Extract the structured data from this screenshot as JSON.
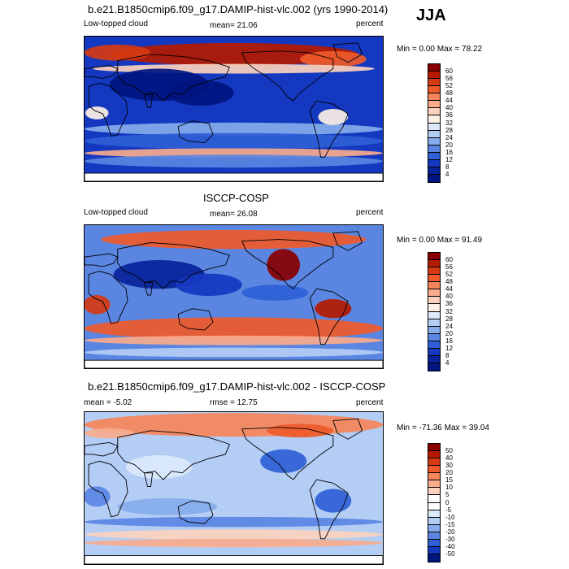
{
  "season": "JJA",
  "panels": [
    {
      "title": "b.e21.B1850cmip6.f09_g17.DAMIP-hist-vlc.002 (yrs 1990-2014)",
      "left_label": "Low-topped cloud",
      "center_label": "mean=  21.06",
      "right_label": "percent",
      "minmax": "Min =   0.00 Max =  78.22",
      "colorbar": {
        "labels": [
          "60",
          "56",
          "52",
          "48",
          "44",
          "40",
          "36",
          "32",
          "28",
          "24",
          "20",
          "16",
          "12",
          "8",
          "4"
        ],
        "colors": [
          "#8a0000",
          "#b51a00",
          "#d63a12",
          "#ef5a2a",
          "#f6855a",
          "#f9ab8c",
          "#fbd2bd",
          "#fdf0e6",
          "#dbe9fb",
          "#b3cdf5",
          "#86acec",
          "#5a86e2",
          "#2f5fd6",
          "#1438c0",
          "#08239a",
          "#001580"
        ]
      },
      "map_style": "model"
    },
    {
      "title": "ISCCP-COSP",
      "left_label": "Low-topped cloud",
      "center_label": "mean=  26.08",
      "right_label": "percent",
      "minmax": "Min =   0.00 Max =  91.49",
      "colorbar": {
        "labels": [
          "60",
          "56",
          "52",
          "48",
          "44",
          "40",
          "36",
          "32",
          "28",
          "24",
          "20",
          "16",
          "12",
          "8",
          "4"
        ],
        "colors": [
          "#8a0000",
          "#b51a00",
          "#d63a12",
          "#ef5a2a",
          "#f6855a",
          "#f9ab8c",
          "#fbd2bd",
          "#fdf0e6",
          "#dbe9fb",
          "#b3cdf5",
          "#86acec",
          "#5a86e2",
          "#2f5fd6",
          "#1438c0",
          "#08239a",
          "#001580"
        ]
      },
      "map_style": "obs"
    },
    {
      "title": "b.e21.B1850cmip6.f09_g17.DAMIP-hist-vlc.002 - ISCCP-COSP",
      "left_label": "mean =  -5.02",
      "center_label": "rmse =  12.75",
      "right_label": "percent",
      "minmax": "Min = -71.36 Max =  39.04",
      "colorbar": {
        "labels": [
          "50",
          "40",
          "30",
          "20",
          "15",
          "10",
          "5",
          "0",
          "-5",
          "-10",
          "-15",
          "-20",
          "-30",
          "-40",
          "-50"
        ],
        "colors": [
          "#8a0000",
          "#b51a00",
          "#d63a12",
          "#ef5a2a",
          "#f6855a",
          "#f9ab8c",
          "#fbd2bd",
          "#ffffff",
          "#ffffff",
          "#dbe9fb",
          "#b3cdf5",
          "#86acec",
          "#5a86e2",
          "#2f5fd6",
          "#1438c0",
          "#001580"
        ]
      },
      "map_style": "diff"
    }
  ]
}
